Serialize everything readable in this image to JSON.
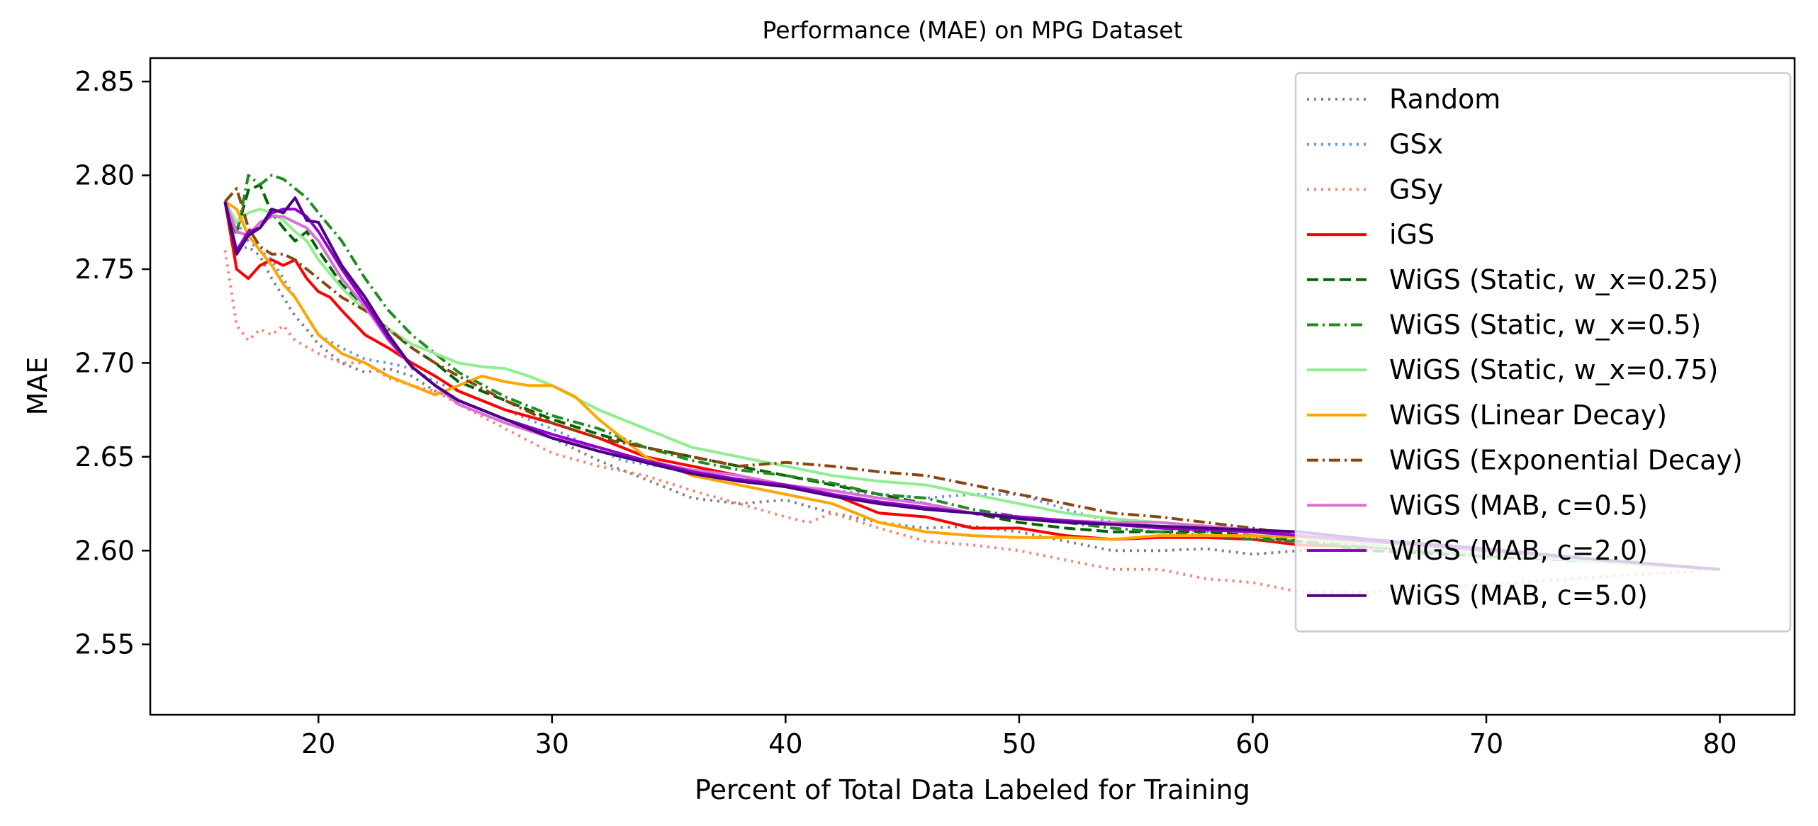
{
  "chart_data": {
    "type": "line",
    "title": "Performance (MAE) on MPG Dataset",
    "xlabel": "Percent of Total Data Labeled for Training",
    "ylabel": "MAE",
    "xlim": [
      12.8,
      83.2
    ],
    "ylim": [
      2.5125,
      2.8625
    ],
    "xticks": [
      20,
      30,
      40,
      50,
      60,
      70,
      80
    ],
    "yticks": [
      2.55,
      2.6,
      2.65,
      2.7,
      2.75,
      2.8,
      2.85
    ],
    "xtick_labels": [
      "20",
      "30",
      "40",
      "50",
      "60",
      "70",
      "80"
    ],
    "ytick_labels": [
      "2.55",
      "2.60",
      "2.65",
      "2.70",
      "2.75",
      "2.80",
      "2.85"
    ],
    "grid": false,
    "legend_position": "upper-right",
    "series": [
      {
        "name": "Random",
        "color": "#808080",
        "style": "dotted",
        "x": [
          16,
          16.5,
          17,
          17.5,
          18,
          18.5,
          19,
          19.5,
          20,
          21,
          22,
          23,
          24,
          25,
          27,
          30,
          32,
          34,
          36,
          38,
          40,
          42,
          44,
          46,
          48,
          50,
          52,
          54,
          56,
          58,
          60,
          62,
          65,
          70,
          75,
          80
        ],
        "y": [
          2.785,
          2.76,
          2.762,
          2.757,
          2.745,
          2.735,
          2.725,
          2.718,
          2.71,
          2.7,
          2.695,
          2.697,
          2.693,
          2.685,
          2.675,
          2.66,
          2.648,
          2.638,
          2.628,
          2.625,
          2.627,
          2.62,
          2.615,
          2.612,
          2.613,
          2.61,
          2.605,
          2.6,
          2.6,
          2.601,
          2.598,
          2.6,
          2.601,
          2.598,
          2.595,
          2.59
        ]
      },
      {
        "name": "GSx",
        "color": "#6495ED",
        "style": "dotted",
        "x": [
          16,
          17,
          18,
          19,
          20,
          21,
          22,
          23,
          24,
          25,
          27,
          30,
          33,
          36,
          38,
          40,
          42,
          44,
          46,
          48,
          50,
          52,
          54,
          56,
          58,
          60,
          63,
          66,
          70,
          75,
          80
        ],
        "y": [
          2.785,
          2.765,
          2.755,
          2.735,
          2.715,
          2.708,
          2.702,
          2.7,
          2.697,
          2.69,
          2.68,
          2.665,
          2.648,
          2.642,
          2.638,
          2.635,
          2.632,
          2.63,
          2.628,
          2.63,
          2.63,
          2.622,
          2.615,
          2.612,
          2.61,
          2.607,
          2.603,
          2.6,
          2.597,
          2.594,
          2.59
        ]
      },
      {
        "name": "GSy",
        "color": "#FA8072",
        "style": "dotted",
        "x": [
          16,
          16.5,
          17,
          17.5,
          18,
          18.5,
          19,
          20,
          21,
          22,
          23,
          24,
          25,
          26,
          28,
          30,
          32,
          34,
          36,
          38,
          40,
          41,
          42,
          44,
          46,
          48,
          50,
          52,
          54,
          56,
          58,
          60,
          62,
          65,
          68,
          70,
          75,
          80
        ],
        "y": [
          2.76,
          2.72,
          2.712,
          2.718,
          2.715,
          2.72,
          2.712,
          2.705,
          2.7,
          2.7,
          2.692,
          2.688,
          2.685,
          2.678,
          2.665,
          2.652,
          2.645,
          2.64,
          2.632,
          2.625,
          2.618,
          2.615,
          2.62,
          2.612,
          2.605,
          2.603,
          2.6,
          2.595,
          2.59,
          2.59,
          2.585,
          2.583,
          2.578,
          2.578,
          2.58,
          2.582,
          2.586,
          2.59
        ]
      },
      {
        "name": "iGS",
        "color": "#FF0000",
        "style": "solid",
        "x": [
          16,
          16.5,
          17,
          17.5,
          18,
          18.5,
          19,
          19.5,
          20,
          20.5,
          21,
          22,
          23,
          24,
          25,
          26,
          27,
          28,
          30,
          32,
          34,
          36,
          38,
          40,
          42,
          44,
          46,
          48,
          50,
          52,
          54,
          56,
          58,
          60,
          62,
          65,
          70,
          75,
          80
        ],
        "y": [
          2.786,
          2.75,
          2.745,
          2.752,
          2.755,
          2.752,
          2.755,
          2.745,
          2.738,
          2.735,
          2.728,
          2.715,
          2.708,
          2.7,
          2.693,
          2.685,
          2.68,
          2.675,
          2.668,
          2.66,
          2.65,
          2.645,
          2.64,
          2.635,
          2.63,
          2.62,
          2.618,
          2.612,
          2.612,
          2.608,
          2.606,
          2.607,
          2.607,
          2.606,
          2.603,
          2.602,
          2.598,
          2.594,
          2.59
        ]
      },
      {
        "name": "WiGS (Static, w_x=0.25)",
        "color": "#006400",
        "style": "dashed",
        "x": [
          16,
          16.5,
          17,
          17.5,
          18,
          18.5,
          19,
          19.5,
          20,
          21,
          22,
          23,
          24,
          25,
          26,
          28,
          30,
          32,
          34,
          36,
          38,
          40,
          42,
          44,
          46,
          48,
          50,
          52,
          54,
          56,
          58,
          60,
          62,
          65,
          70,
          75,
          80
        ],
        "y": [
          2.786,
          2.77,
          2.792,
          2.795,
          2.78,
          2.772,
          2.765,
          2.77,
          2.76,
          2.742,
          2.73,
          2.718,
          2.708,
          2.7,
          2.69,
          2.68,
          2.67,
          2.662,
          2.655,
          2.65,
          2.645,
          2.64,
          2.635,
          2.63,
          2.625,
          2.62,
          2.615,
          2.612,
          2.61,
          2.61,
          2.61,
          2.608,
          2.605,
          2.6,
          2.597,
          2.594,
          2.59
        ]
      },
      {
        "name": "WiGS (Static, w_x=0.5)",
        "color": "#228B22",
        "style": "dashdot",
        "x": [
          16,
          16.5,
          17,
          17.5,
          18,
          18.5,
          19,
          19.5,
          20,
          21,
          22,
          23,
          24,
          25,
          26,
          28,
          30,
          32,
          34,
          36,
          38,
          40,
          42,
          44,
          46,
          48,
          50,
          52,
          54,
          56,
          58,
          60,
          62,
          65,
          70,
          75,
          80
        ],
        "y": [
          2.786,
          2.768,
          2.8,
          2.795,
          2.8,
          2.798,
          2.793,
          2.788,
          2.78,
          2.765,
          2.745,
          2.728,
          2.715,
          2.705,
          2.695,
          2.682,
          2.672,
          2.665,
          2.655,
          2.648,
          2.643,
          2.64,
          2.636,
          2.63,
          2.628,
          2.622,
          2.618,
          2.615,
          2.612,
          2.61,
          2.608,
          2.606,
          2.605,
          2.602,
          2.598,
          2.594,
          2.59
        ]
      },
      {
        "name": "WiGS (Static, w_x=0.75)",
        "color": "#90EE90",
        "style": "solid",
        "x": [
          16,
          16.5,
          17,
          17.5,
          18,
          18.5,
          19,
          19.5,
          20,
          21,
          22,
          23,
          24,
          25,
          26,
          27,
          28,
          29,
          30,
          32,
          34,
          36,
          38,
          40,
          42,
          44,
          46,
          48,
          50,
          52,
          54,
          56,
          58,
          60,
          62,
          65,
          70,
          75,
          80
        ],
        "y": [
          2.786,
          2.775,
          2.78,
          2.782,
          2.78,
          2.776,
          2.77,
          2.765,
          2.755,
          2.74,
          2.728,
          2.718,
          2.71,
          2.705,
          2.7,
          2.698,
          2.697,
          2.693,
          2.688,
          2.675,
          2.665,
          2.655,
          2.65,
          2.645,
          2.64,
          2.637,
          2.635,
          2.63,
          2.625,
          2.62,
          2.617,
          2.615,
          2.613,
          2.61,
          2.607,
          2.603,
          2.598,
          2.594,
          2.59
        ]
      },
      {
        "name": "WiGS (Linear Decay)",
        "color": "#FFA500",
        "style": "solid",
        "x": [
          16,
          16.5,
          17,
          17.5,
          18,
          18.5,
          19,
          19.5,
          20,
          21,
          22,
          23,
          24,
          25,
          26,
          27,
          28,
          29,
          30,
          31,
          32,
          33,
          34,
          36,
          38,
          40,
          42,
          44,
          46,
          48,
          50,
          52,
          54,
          56,
          58,
          60,
          62,
          65,
          70,
          75,
          80
        ],
        "y": [
          2.786,
          2.782,
          2.768,
          2.76,
          2.752,
          2.742,
          2.735,
          2.725,
          2.715,
          2.705,
          2.7,
          2.693,
          2.688,
          2.683,
          2.688,
          2.693,
          2.69,
          2.688,
          2.688,
          2.682,
          2.67,
          2.66,
          2.65,
          2.64,
          2.635,
          2.63,
          2.625,
          2.615,
          2.61,
          2.608,
          2.607,
          2.607,
          2.606,
          2.608,
          2.608,
          2.608,
          2.607,
          2.605,
          2.6,
          2.595,
          2.59
        ]
      },
      {
        "name": "WiGS (Exponential Decay)",
        "color": "#8B4513",
        "style": "dashdot",
        "x": [
          16,
          16.5,
          17,
          17.5,
          18,
          18.5,
          19,
          19.5,
          20,
          21,
          22,
          23,
          24,
          25,
          26,
          28,
          30,
          32,
          34,
          36,
          38,
          40,
          42,
          44,
          46,
          48,
          50,
          52,
          54,
          56,
          58,
          60,
          62,
          65,
          70,
          75,
          80
        ],
        "y": [
          2.786,
          2.793,
          2.772,
          2.762,
          2.758,
          2.758,
          2.755,
          2.75,
          2.745,
          2.735,
          2.728,
          2.718,
          2.708,
          2.7,
          2.693,
          2.68,
          2.668,
          2.66,
          2.655,
          2.65,
          2.645,
          2.647,
          2.645,
          2.642,
          2.64,
          2.635,
          2.63,
          2.625,
          2.62,
          2.618,
          2.615,
          2.612,
          2.608,
          2.605,
          2.6,
          2.595,
          2.59
        ]
      },
      {
        "name": "WiGS (MAB, c=0.5)",
        "color": "#DA70D6",
        "style": "solid",
        "x": [
          16,
          16.5,
          17,
          17.5,
          18,
          18.5,
          19,
          19.5,
          20,
          21,
          22,
          23,
          24,
          25,
          26,
          28,
          30,
          32,
          34,
          36,
          38,
          40,
          42,
          44,
          46,
          48,
          50,
          52,
          54,
          56,
          58,
          60,
          62,
          65,
          70,
          75,
          80
        ],
        "y": [
          2.786,
          2.77,
          2.768,
          2.775,
          2.778,
          2.778,
          2.775,
          2.772,
          2.765,
          2.745,
          2.73,
          2.712,
          2.698,
          2.688,
          2.678,
          2.668,
          2.66,
          2.655,
          2.648,
          2.643,
          2.64,
          2.635,
          2.632,
          2.628,
          2.625,
          2.62,
          2.618,
          2.616,
          2.615,
          2.615,
          2.613,
          2.611,
          2.608,
          2.605,
          2.6,
          2.595,
          2.59
        ]
      },
      {
        "name": "WiGS (MAB, c=2.0)",
        "color": "#9400D3",
        "style": "solid",
        "x": [
          16,
          16.5,
          17,
          17.5,
          18,
          18.5,
          19,
          19.5,
          20,
          21,
          22,
          23,
          24,
          25,
          26,
          28,
          30,
          32,
          34,
          36,
          38,
          40,
          42,
          44,
          46,
          48,
          50,
          52,
          54,
          56,
          58,
          60,
          62,
          65,
          70,
          75,
          80
        ],
        "y": [
          2.786,
          2.76,
          2.77,
          2.772,
          2.78,
          2.782,
          2.782,
          2.778,
          2.77,
          2.75,
          2.732,
          2.713,
          2.698,
          2.688,
          2.68,
          2.67,
          2.662,
          2.655,
          2.648,
          2.642,
          2.638,
          2.635,
          2.63,
          2.626,
          2.623,
          2.62,
          2.618,
          2.616,
          2.614,
          2.612,
          2.611,
          2.61,
          2.608,
          2.605,
          2.6,
          2.595,
          2.59
        ]
      },
      {
        "name": "WiGS (MAB, c=5.0)",
        "color": "#4B0082",
        "style": "solid",
        "x": [
          16,
          16.5,
          17,
          17.5,
          18,
          18.5,
          19,
          19.5,
          20,
          21,
          22,
          23,
          24,
          25,
          26,
          28,
          30,
          32,
          34,
          36,
          38,
          40,
          42,
          44,
          46,
          48,
          50,
          52,
          54,
          56,
          58,
          60,
          62,
          65,
          70,
          75,
          80
        ],
        "y": [
          2.786,
          2.758,
          2.768,
          2.772,
          2.782,
          2.78,
          2.788,
          2.776,
          2.775,
          2.752,
          2.735,
          2.715,
          2.698,
          2.688,
          2.68,
          2.67,
          2.66,
          2.653,
          2.647,
          2.641,
          2.637,
          2.634,
          2.629,
          2.625,
          2.622,
          2.62,
          2.617,
          2.615,
          2.614,
          2.613,
          2.612,
          2.611,
          2.61,
          2.606,
          2.601,
          2.595,
          2.59
        ]
      }
    ]
  }
}
